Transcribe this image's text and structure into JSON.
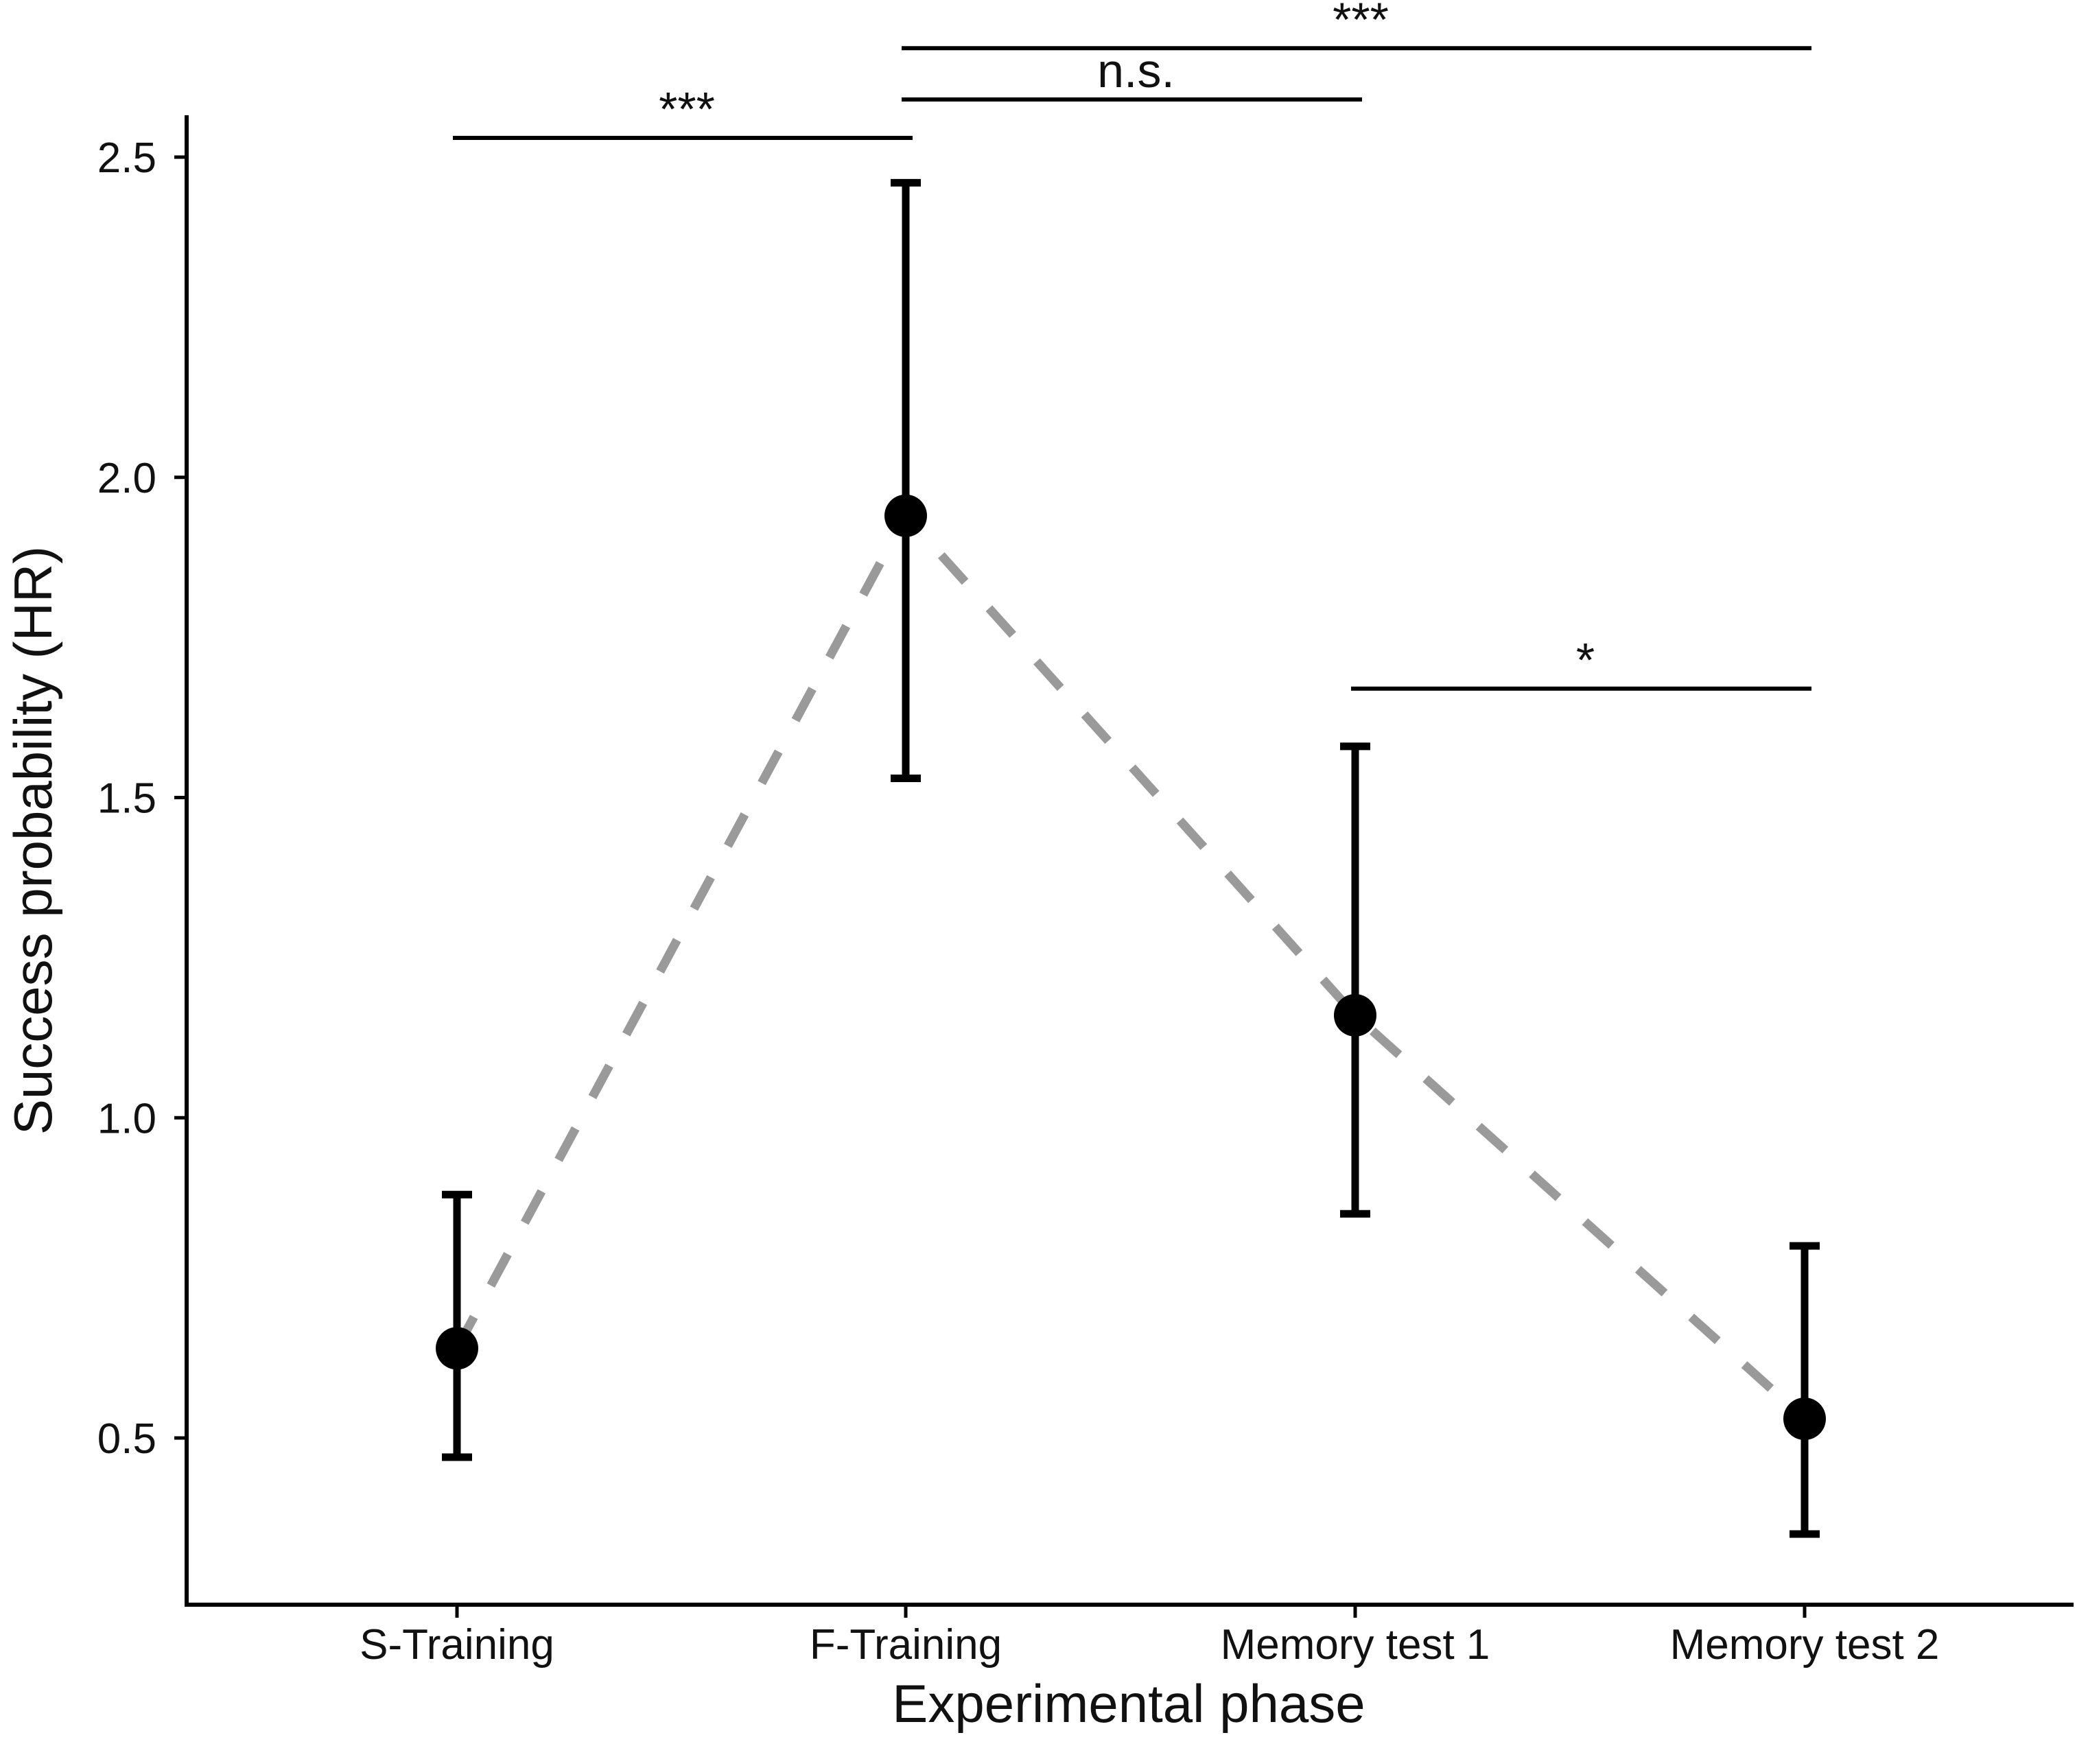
{
  "chart_data": {
    "type": "scatter",
    "title": "",
    "xlabel": "Experimental phase",
    "ylabel": "Success probability (HR)",
    "categories": [
      "S-Training",
      "F-Training",
      "Memory test 1",
      "Memory test 2"
    ],
    "yticks": [
      "0.5",
      "1.0",
      "1.5",
      "2.0",
      "2.5"
    ],
    "ylim": [
      0.27,
      2.57
    ],
    "grid": false,
    "legend": "none",
    "trend_line": {
      "style": "dashed",
      "color": "#9a9a9a"
    },
    "series": [
      {
        "points": [
          {
            "category": "S-Training",
            "value": 0.64,
            "lower": 0.47,
            "upper": 0.88
          },
          {
            "category": "F-Training",
            "value": 1.94,
            "lower": 1.53,
            "upper": 2.46
          },
          {
            "category": "Memory test 1",
            "value": 1.16,
            "lower": 0.85,
            "upper": 1.58
          },
          {
            "category": "Memory test 2",
            "value": 0.53,
            "lower": 0.35,
            "upper": 0.8
          }
        ]
      }
    ],
    "significance": [
      {
        "from": "S-Training",
        "to": "F-Training",
        "label": "***",
        "y": 2.53
      },
      {
        "from": "F-Training",
        "to": "Memory test 1",
        "label": "n.s.",
        "y": 2.59
      },
      {
        "from": "F-Training",
        "to": "Memory test 2",
        "label": "***",
        "y": 2.67
      },
      {
        "from": "Memory test 1",
        "to": "Memory test 2",
        "label": "*",
        "y": 1.67
      }
    ]
  }
}
